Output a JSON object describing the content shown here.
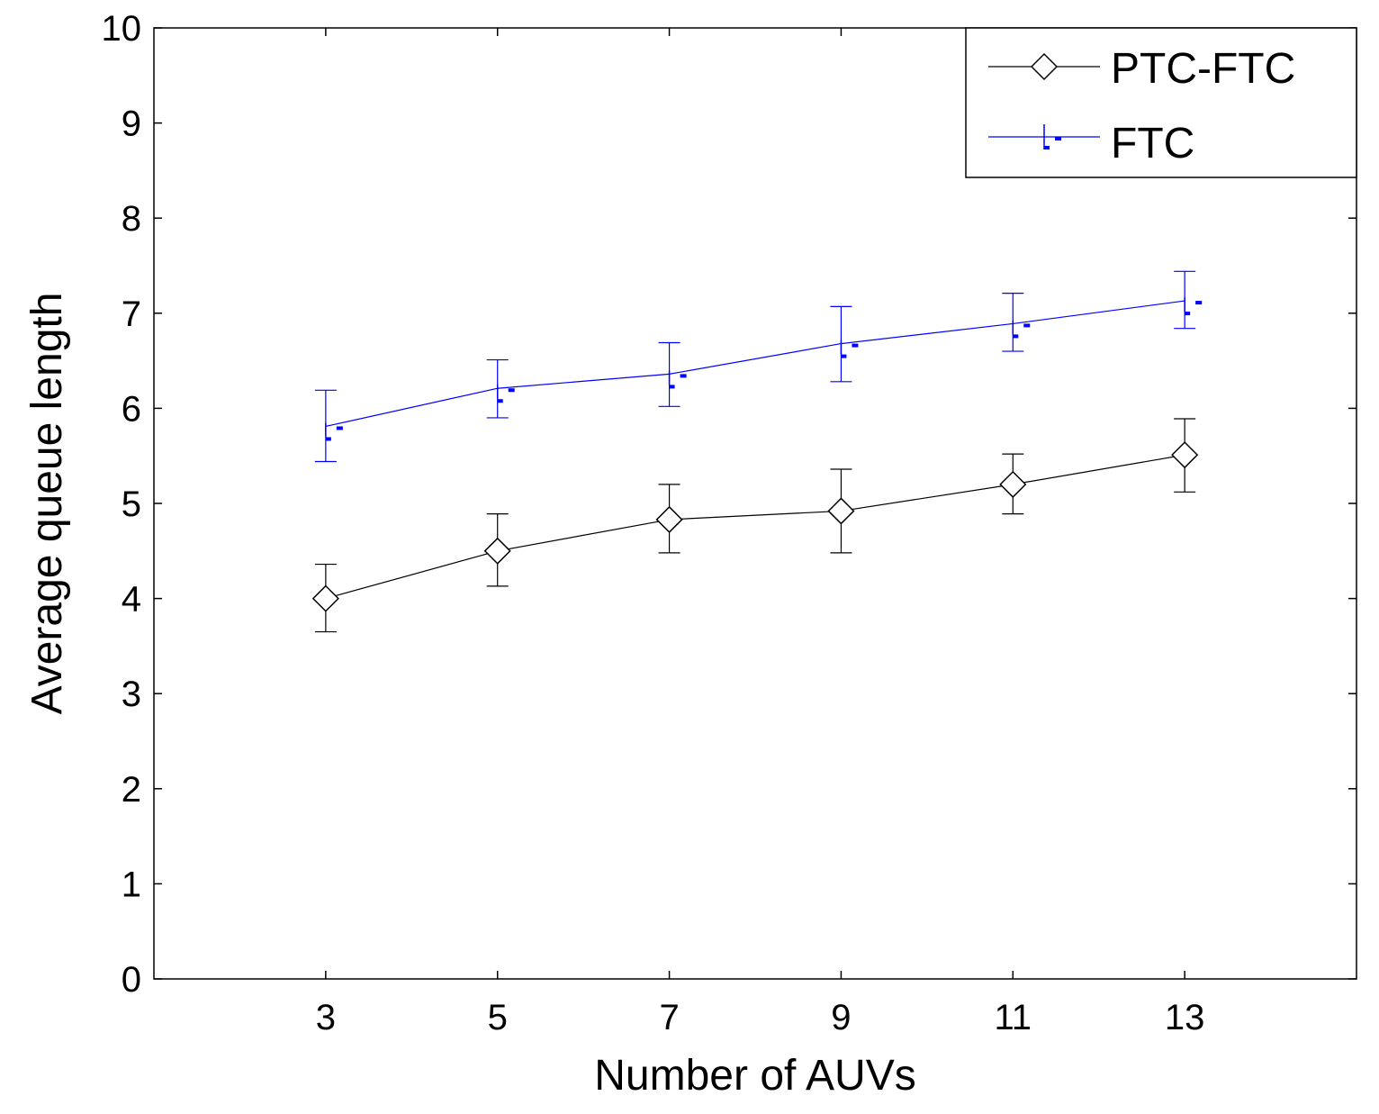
{
  "chart_data": {
    "type": "line",
    "title": "",
    "xlabel": "Number of AUVs",
    "ylabel": "Average queue length",
    "xlim": [
      1,
      15
    ],
    "ylim": [
      0,
      10
    ],
    "x": [
      3,
      5,
      7,
      9,
      11,
      13
    ],
    "xticks": [
      "3",
      "5",
      "7",
      "9",
      "11",
      "13"
    ],
    "yticks": [
      "0",
      "1",
      "2",
      "3",
      "4",
      "5",
      "6",
      "7",
      "8",
      "9",
      "10"
    ],
    "grid": false,
    "legend_position": "top-right",
    "series": [
      {
        "name": "PTC-FTC",
        "color": "#000000",
        "marker": "diamond",
        "values": [
          4.0,
          4.5,
          4.83,
          4.92,
          5.2,
          5.51
        ],
        "error_low": [
          3.65,
          4.13,
          4.48,
          4.48,
          4.89,
          5.12
        ],
        "error_high": [
          4.36,
          4.89,
          5.2,
          5.36,
          5.52,
          5.89
        ]
      },
      {
        "name": "FTC",
        "color": "#0000ff",
        "marker": "plus-dot",
        "values": [
          5.81,
          6.21,
          6.36,
          6.68,
          6.89,
          7.13
        ],
        "error_low": [
          5.44,
          5.9,
          6.02,
          6.28,
          6.6,
          6.84
        ],
        "error_high": [
          6.19,
          6.51,
          6.69,
          7.07,
          7.21,
          7.44
        ]
      }
    ]
  }
}
